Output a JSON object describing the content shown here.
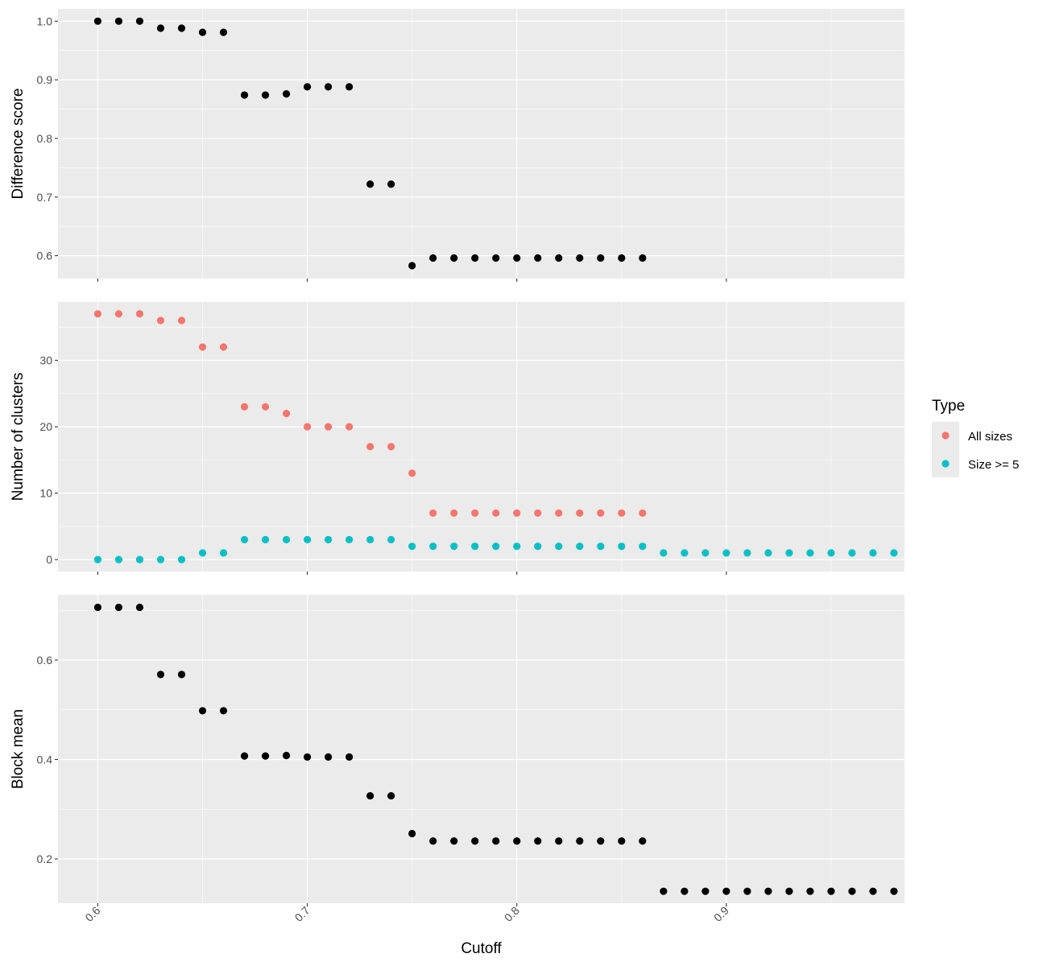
{
  "chart_data": {
    "type": "scatter",
    "xlabel": "Cutoff",
    "xlim": [
      0.581,
      0.985
    ],
    "x_ticks": [
      "0.6",
      "0.7",
      "0.8",
      "0.9"
    ],
    "x_tick_values": [
      0.6,
      0.7,
      0.8,
      0.9
    ],
    "grid": true,
    "legend": {
      "title": "Type",
      "placement": "right",
      "entries": [
        {
          "label": "All sizes",
          "color": "#F8766D"
        },
        {
          "label": "Size >= 5",
          "color": "#00BFC4"
        }
      ]
    },
    "panels": [
      {
        "ylabel": "Difference score",
        "ylim": [
          0.561,
          1.021
        ],
        "y_ticks": [
          "0.6",
          "0.7",
          "0.8",
          "0.9",
          "1.0"
        ],
        "y_tick_values": [
          0.6,
          0.7,
          0.8,
          0.9,
          1.0
        ],
        "series": [
          {
            "color": "#000000",
            "x": [
              0.6,
              0.61,
              0.62,
              0.63,
              0.64,
              0.65,
              0.66,
              0.67,
              0.68,
              0.69,
              0.7,
              0.71,
              0.72,
              0.73,
              0.74,
              0.75,
              0.76,
              0.77,
              0.78,
              0.79,
              0.8,
              0.81,
              0.82,
              0.83,
              0.84,
              0.85,
              0.86
            ],
            "y": [
              1.0,
              1.0,
              1.0,
              0.988,
              0.988,
              0.981,
              0.981,
              0.874,
              0.874,
              0.876,
              0.888,
              0.888,
              0.888,
              0.722,
              0.722,
              0.583,
              0.596,
              0.596,
              0.596,
              0.596,
              0.596,
              0.596,
              0.596,
              0.596,
              0.596,
              0.596,
              0.596
            ]
          }
        ]
      },
      {
        "ylabel": "Number of clusters",
        "ylim": [
          -1.8,
          38.8
        ],
        "y_ticks": [
          "0",
          "10",
          "20",
          "30"
        ],
        "y_tick_values": [
          0,
          10,
          20,
          30
        ],
        "series": [
          {
            "name": "All sizes",
            "color": "#F8766D",
            "x": [
              0.6,
              0.61,
              0.62,
              0.63,
              0.64,
              0.65,
              0.66,
              0.67,
              0.68,
              0.69,
              0.7,
              0.71,
              0.72,
              0.73,
              0.74,
              0.75,
              0.76,
              0.77,
              0.78,
              0.79,
              0.8,
              0.81,
              0.82,
              0.83,
              0.84,
              0.85,
              0.86
            ],
            "y": [
              37,
              37,
              37,
              36,
              36,
              32,
              32,
              23,
              23,
              22,
              20,
              20,
              20,
              17,
              17,
              13,
              7,
              7,
              7,
              7,
              7,
              7,
              7,
              7,
              7,
              7,
              7
            ]
          },
          {
            "name": "Size >= 5",
            "color": "#00BFC4",
            "x": [
              0.6,
              0.61,
              0.62,
              0.63,
              0.64,
              0.65,
              0.66,
              0.67,
              0.68,
              0.69,
              0.7,
              0.71,
              0.72,
              0.73,
              0.74,
              0.75,
              0.76,
              0.77,
              0.78,
              0.79,
              0.8,
              0.81,
              0.82,
              0.83,
              0.84,
              0.85,
              0.86,
              0.87,
              0.88,
              0.89,
              0.9,
              0.91,
              0.92,
              0.93,
              0.94,
              0.95,
              0.96,
              0.97,
              0.98
            ],
            "y": [
              0,
              0,
              0,
              0,
              0,
              1,
              1,
              3,
              3,
              3,
              3,
              3,
              3,
              3,
              3,
              2,
              2,
              2,
              2,
              2,
              2,
              2,
              2,
              2,
              2,
              2,
              2,
              1,
              1,
              1,
              1,
              1,
              1,
              1,
              1,
              1,
              1,
              1,
              1
            ]
          }
        ]
      },
      {
        "ylabel": "Block mean",
        "ylim": [
          0.111,
          0.731
        ],
        "y_ticks": [
          "0.2",
          "0.4",
          "0.6"
        ],
        "y_tick_values": [
          0.2,
          0.4,
          0.6
        ],
        "series": [
          {
            "color": "#000000",
            "x": [
              0.6,
              0.61,
              0.62,
              0.63,
              0.64,
              0.65,
              0.66,
              0.67,
              0.68,
              0.69,
              0.7,
              0.71,
              0.72,
              0.73,
              0.74,
              0.75,
              0.76,
              0.77,
              0.78,
              0.79,
              0.8,
              0.81,
              0.82,
              0.83,
              0.84,
              0.85,
              0.86,
              0.87,
              0.88,
              0.89,
              0.9,
              0.91,
              0.92,
              0.93,
              0.94,
              0.95,
              0.96,
              0.97,
              0.98
            ],
            "y": [
              0.706,
              0.706,
              0.706,
              0.571,
              0.571,
              0.498,
              0.498,
              0.407,
              0.407,
              0.408,
              0.405,
              0.405,
              0.405,
              0.327,
              0.327,
              0.251,
              0.236,
              0.236,
              0.236,
              0.236,
              0.236,
              0.236,
              0.236,
              0.236,
              0.236,
              0.236,
              0.236,
              0.135,
              0.135,
              0.135,
              0.135,
              0.135,
              0.135,
              0.135,
              0.135,
              0.135,
              0.135,
              0.135,
              0.135
            ]
          }
        ]
      }
    ]
  }
}
